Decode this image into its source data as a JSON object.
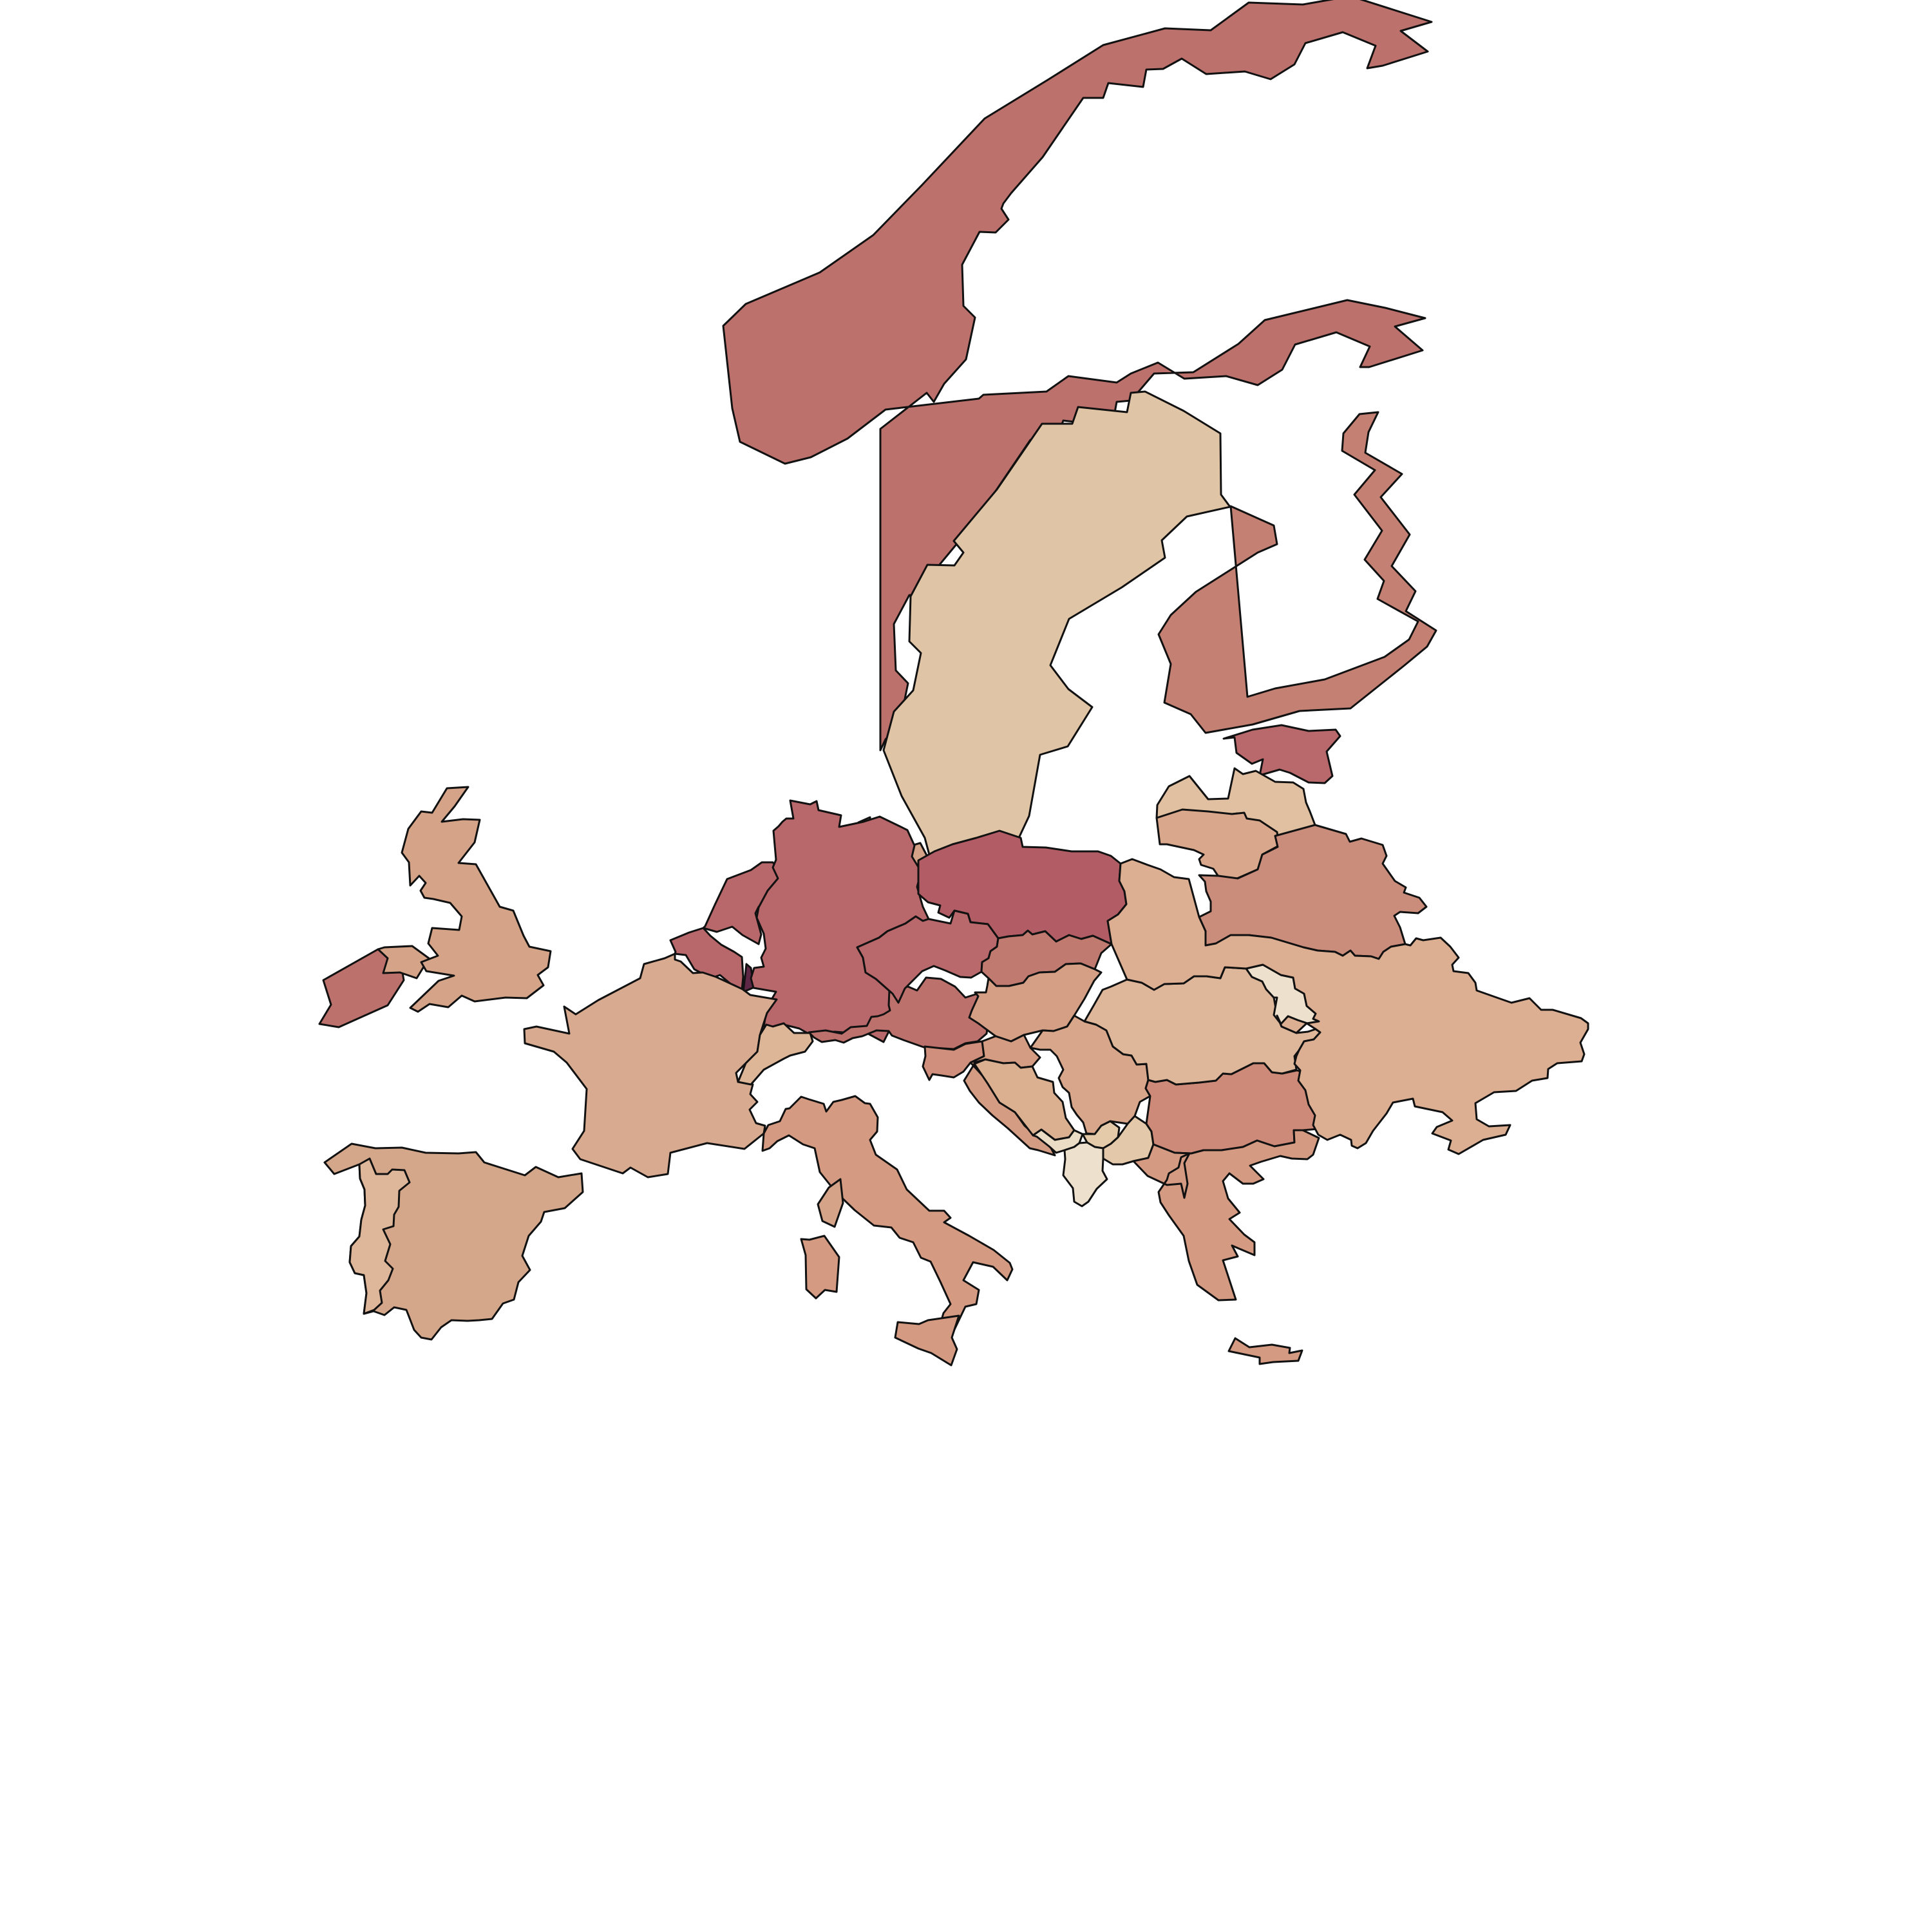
{
  "map": {
    "type": "choropleth",
    "background": "#ffffff",
    "border_color": "#111111",
    "legend": null,
    "regions": [
      {
        "id": "norway",
        "fill": "#bd716c"
      },
      {
        "id": "sweden",
        "fill": "#e0c4a6"
      },
      {
        "id": "finland",
        "fill": "#c48073"
      },
      {
        "id": "iceland-ireland",
        "fill": "#bd716c"
      },
      {
        "id": "great-britain",
        "fill": "#d5a488"
      },
      {
        "id": "northern-ireland",
        "fill": "#d5a488"
      },
      {
        "id": "estonia",
        "fill": "#b9686b"
      },
      {
        "id": "latvia",
        "fill": "#e0c0a0"
      },
      {
        "id": "lithuania",
        "fill": "#d9a78b"
      },
      {
        "id": "belarus",
        "fill": "#cb8d7b"
      },
      {
        "id": "denmark",
        "fill": "#d5a488"
      },
      {
        "id": "zealand",
        "fill": "#d5a488"
      },
      {
        "id": "germany",
        "fill": "#b8676a"
      },
      {
        "id": "poland",
        "fill": "#b25d65"
      },
      {
        "id": "netherlands",
        "fill": "#b8676a"
      },
      {
        "id": "belgium",
        "fill": "#b8676a"
      },
      {
        "id": "luxembourg",
        "fill": "#5e2745"
      },
      {
        "id": "france",
        "fill": "#d8aa90"
      },
      {
        "id": "spain",
        "fill": "#d5a78a"
      },
      {
        "id": "portugal",
        "fill": "#deb79b"
      },
      {
        "id": "switzerland",
        "fill": "#ddb597"
      },
      {
        "id": "austria",
        "fill": "#bd716c"
      },
      {
        "id": "czechia",
        "fill": "#b9686b"
      },
      {
        "id": "slovakia",
        "fill": "#c07a70"
      },
      {
        "id": "hungary",
        "fill": "#d49f85"
      },
      {
        "id": "slovenia",
        "fill": "#cf8f7c"
      },
      {
        "id": "croatia",
        "fill": "#d39c83"
      },
      {
        "id": "bosnia",
        "fill": "#dbb091"
      },
      {
        "id": "serbia",
        "fill": "#d8a68a"
      },
      {
        "id": "montenegro",
        "fill": "#ebdcc5"
      },
      {
        "id": "kosovo",
        "fill": "#e4caa9"
      },
      {
        "id": "albania",
        "fill": "#ede1cd"
      },
      {
        "id": "north-macedonia",
        "fill": "#e3c8aa"
      },
      {
        "id": "bulgaria",
        "fill": "#ce8a78"
      },
      {
        "id": "romania",
        "fill": "#deb79b"
      },
      {
        "id": "moldova",
        "fill": "#ede1cd"
      },
      {
        "id": "ukraine",
        "fill": "#dcae92"
      },
      {
        "id": "italy",
        "fill": "#d49a82"
      },
      {
        "id": "sardinia",
        "fill": "#d49a82"
      },
      {
        "id": "corsica",
        "fill": "#d5a488"
      },
      {
        "id": "sicily",
        "fill": "#d49a82"
      },
      {
        "id": "greece",
        "fill": "#d49a82"
      },
      {
        "id": "crete",
        "fill": "#d49a82"
      }
    ]
  }
}
